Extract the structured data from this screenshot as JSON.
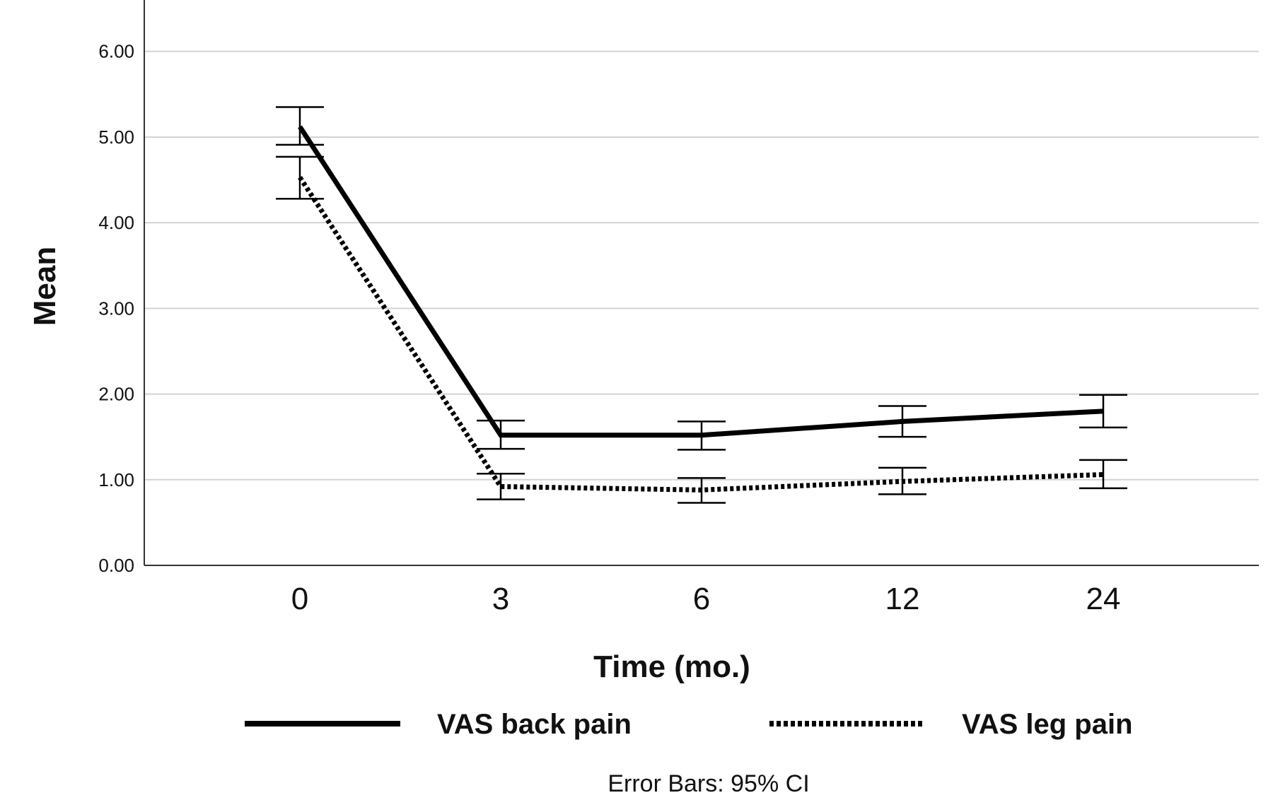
{
  "chart_data": {
    "type": "line",
    "title": "",
    "xlabel": "Time (mo.)",
    "ylabel": "Mean",
    "categories": [
      "0",
      "3",
      "6",
      "12",
      "24"
    ],
    "y_ticks": [
      "0.00",
      "1.00",
      "2.00",
      "3.00",
      "4.00",
      "5.00",
      "6.00"
    ],
    "ylim": [
      0,
      6.6
    ],
    "grid": "horizontal",
    "legend_position": "bottom",
    "series": [
      {
        "name": "VAS back pain",
        "line_style": "solid",
        "values": [
          5.12,
          1.52,
          1.52,
          1.68,
          1.8
        ],
        "ci_low": [
          4.91,
          1.36,
          1.35,
          1.5,
          1.61
        ],
        "ci_high": [
          5.35,
          1.69,
          1.68,
          1.86,
          1.99
        ]
      },
      {
        "name": "VAS leg pain",
        "line_style": "dotted",
        "values": [
          4.53,
          0.92,
          0.88,
          0.98,
          1.06
        ],
        "ci_low": [
          4.28,
          0.77,
          0.73,
          0.83,
          0.9
        ],
        "ci_high": [
          4.77,
          1.07,
          1.02,
          1.14,
          1.23
        ]
      }
    ],
    "footnote": "Error Bars: 95% CI",
    "colors": {
      "line": "#000000",
      "grid": "#d3d3d3",
      "axis": "#333333"
    }
  }
}
